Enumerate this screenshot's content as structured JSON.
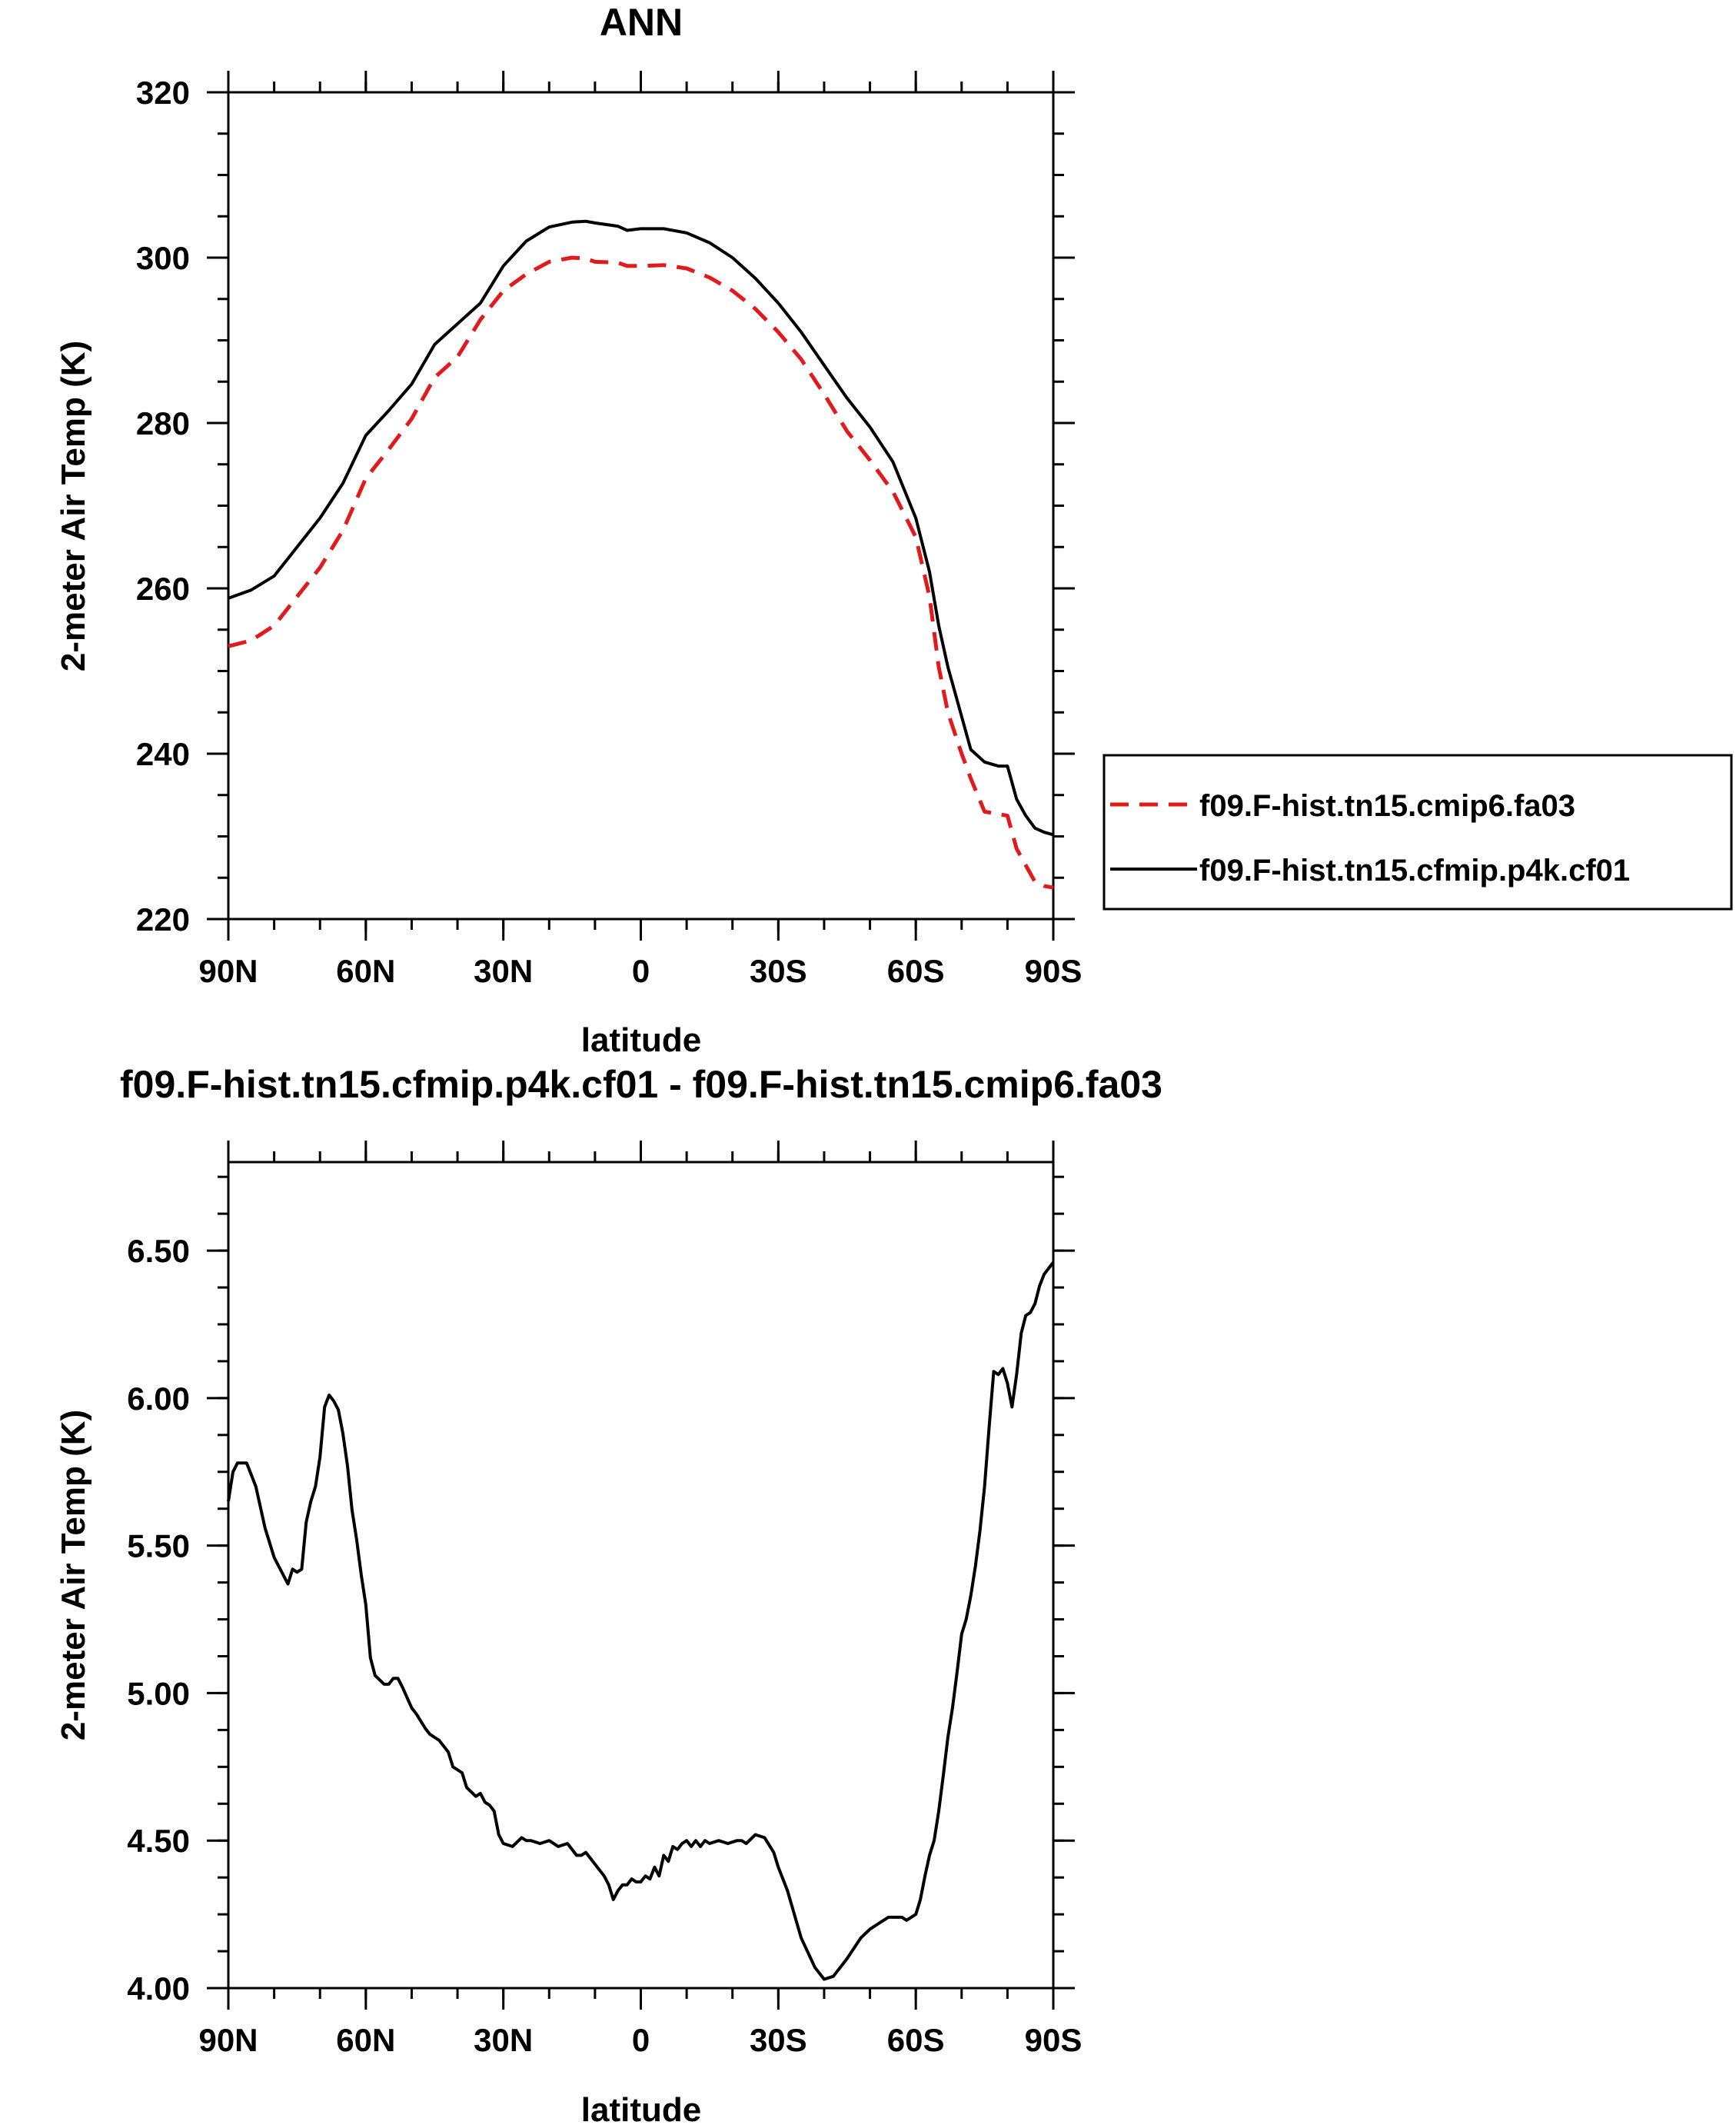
{
  "chart_data": [
    {
      "type": "line",
      "title": "ANN",
      "xlabel": "latitude",
      "ylabel": "2-meter Air Temp (K)",
      "xlim": [
        90,
        -90
      ],
      "ylim": [
        220,
        320
      ],
      "x_ticks": [
        90,
        60,
        30,
        0,
        -30,
        -60,
        -90
      ],
      "x_tick_labels": [
        "90N",
        "60N",
        "30N",
        "0",
        "30S",
        "60S",
        "90S"
      ],
      "y_ticks": [
        220,
        240,
        260,
        280,
        300,
        320
      ],
      "y_tick_labels": [
        "220",
        "240",
        "260",
        "280",
        "300",
        "320"
      ],
      "legend": "outside-right",
      "series": [
        {
          "name": "f09.F-hist.tn15.cmip6.fa03",
          "color": "#e31a1c",
          "dash": "dashed",
          "x": [
            90,
            85,
            80,
            75,
            70,
            65,
            60,
            55,
            50,
            45,
            40,
            35,
            30,
            25,
            20,
            15,
            12,
            10,
            5,
            3,
            0,
            -5,
            -10,
            -15,
            -20,
            -25,
            -30,
            -35,
            -40,
            -45,
            -50,
            -55,
            -60,
            -63,
            -65,
            -67,
            -70,
            -72,
            -75,
            -78,
            -80,
            -82,
            -84,
            -86,
            -88,
            -90
          ],
          "y": [
            253,
            253.7,
            255.5,
            259,
            262.5,
            267,
            273.3,
            276.8,
            280.5,
            285.5,
            288,
            292.5,
            296,
            298,
            299.5,
            300,
            299.9,
            299.5,
            299.4,
            299,
            299,
            299.1,
            298.7,
            297.6,
            296,
            293.8,
            291,
            287.7,
            283.5,
            279,
            275.5,
            271.7,
            266.2,
            259,
            250.5,
            245,
            240,
            237,
            233,
            232.7,
            232.5,
            228.5,
            226.5,
            224.5,
            224,
            223.8
          ]
        },
        {
          "name": "f09.F-hist.tn15.cfmip.p4k.cf01",
          "color": "#000000",
          "dash": "solid",
          "x": [
            90,
            85,
            80,
            75,
            70,
            65,
            60,
            55,
            50,
            45,
            40,
            35,
            30,
            28,
            25,
            20,
            15,
            12,
            10,
            5,
            3,
            0,
            -5,
            -10,
            -15,
            -20,
            -25,
            -30,
            -35,
            -40,
            -45,
            -50,
            -55,
            -60,
            -63,
            -65,
            -67,
            -70,
            -72,
            -75,
            -78,
            -80,
            -82,
            -84,
            -86,
            -88,
            -90
          ],
          "y": [
            258.8,
            259.8,
            261.5,
            265,
            268.5,
            272.7,
            278.5,
            281.5,
            284.7,
            289.5,
            292,
            294.5,
            299,
            300.2,
            302,
            303.7,
            304.3,
            304.4,
            304.2,
            303.8,
            303.3,
            303.5,
            303.5,
            303,
            301.8,
            300,
            297.5,
            294.5,
            291,
            287,
            283,
            279.5,
            275.3,
            268.5,
            262,
            255.5,
            250.5,
            244.5,
            240.5,
            239,
            238.5,
            238.5,
            234.5,
            232.5,
            231,
            230.5,
            230.2
          ]
        }
      ]
    },
    {
      "type": "line",
      "title": "f09.F-hist.tn15.cfmip.p4k.cf01 - f09.F-hist.tn15.cmip6.fa03",
      "xlabel": "latitude",
      "ylabel": "2-meter Air Temp (K)",
      "xlim": [
        90,
        -90
      ],
      "ylim": [
        4.0,
        6.8
      ],
      "x_ticks": [
        90,
        60,
        30,
        0,
        -30,
        -60,
        -90
      ],
      "x_tick_labels": [
        "90N",
        "60N",
        "30N",
        "0",
        "30S",
        "60S",
        "90S"
      ],
      "y_ticks": [
        4.0,
        4.5,
        5.0,
        5.5,
        6.0,
        6.5
      ],
      "y_tick_labels": [
        "4.00",
        "4.50",
        "5.00",
        "5.50",
        "6.00",
        "6.50"
      ],
      "series": [
        {
          "color": "#000000",
          "dash": "solid",
          "x": [
            90,
            89,
            88,
            86,
            84,
            82,
            80,
            78,
            77,
            76,
            75,
            74,
            73,
            72,
            71,
            70,
            69,
            68,
            67,
            66,
            65,
            64,
            63,
            62,
            61,
            60,
            59,
            58,
            56,
            55,
            54,
            53,
            52,
            50,
            49,
            47,
            46,
            44,
            42,
            41,
            39,
            38,
            36,
            35,
            34,
            33,
            32,
            31,
            30,
            28,
            26,
            25,
            24,
            22,
            20,
            18,
            16,
            14,
            13,
            12,
            10,
            8,
            7,
            6,
            5,
            4,
            3,
            2,
            1,
            0,
            -1,
            -2,
            -3,
            -4,
            -5,
            -6,
            -7,
            -8,
            -9,
            -10,
            -11,
            -12,
            -13,
            -14,
            -15,
            -17,
            -19,
            -21,
            -22,
            -23,
            -25,
            -27,
            -29,
            -30,
            -32,
            -35,
            -38,
            -40,
            -42,
            -45,
            -48,
            -50,
            -52,
            -54,
            -55,
            -57,
            -58,
            -60,
            -61,
            -62,
            -63,
            -64,
            -65,
            -66,
            -67,
            -68,
            -69,
            -70,
            -71,
            -72,
            -73,
            -74,
            -75,
            -76,
            -77,
            -78,
            -79,
            -80,
            -81,
            -82,
            -83,
            -84,
            -85,
            -86,
            -87,
            -88,
            -89,
            -90
          ],
          "y": [
            5.65,
            5.75,
            5.78,
            5.78,
            5.7,
            5.56,
            5.46,
            5.4,
            5.37,
            5.42,
            5.41,
            5.42,
            5.58,
            5.65,
            5.7,
            5.8,
            5.97,
            6.01,
            5.99,
            5.96,
            5.88,
            5.77,
            5.62,
            5.52,
            5.4,
            5.3,
            5.12,
            5.06,
            5.03,
            5.03,
            5.05,
            5.05,
            5.02,
            4.95,
            4.93,
            4.88,
            4.86,
            4.84,
            4.8,
            4.75,
            4.73,
            4.68,
            4.65,
            4.66,
            4.63,
            4.62,
            4.6,
            4.52,
            4.49,
            4.48,
            4.51,
            4.5,
            4.5,
            4.49,
            4.5,
            4.48,
            4.49,
            4.45,
            4.45,
            4.46,
            4.42,
            4.38,
            4.35,
            4.3,
            4.33,
            4.35,
            4.35,
            4.37,
            4.36,
            4.36,
            4.38,
            4.37,
            4.41,
            4.38,
            4.45,
            4.43,
            4.48,
            4.47,
            4.49,
            4.5,
            4.48,
            4.5,
            4.48,
            4.5,
            4.49,
            4.5,
            4.49,
            4.5,
            4.5,
            4.49,
            4.52,
            4.51,
            4.46,
            4.41,
            4.33,
            4.17,
            4.07,
            4.03,
            4.04,
            4.1,
            4.17,
            4.2,
            4.22,
            4.24,
            4.24,
            4.24,
            4.23,
            4.25,
            4.3,
            4.38,
            4.45,
            4.5,
            4.6,
            4.72,
            4.85,
            4.95,
            5.07,
            5.2,
            5.25,
            5.33,
            5.43,
            5.55,
            5.7,
            5.9,
            6.09,
            6.08,
            6.1,
            6.05,
            5.97,
            6.08,
            6.22,
            6.28,
            6.29,
            6.32,
            6.38,
            6.42,
            6.44,
            6.46
          ]
        }
      ]
    }
  ]
}
